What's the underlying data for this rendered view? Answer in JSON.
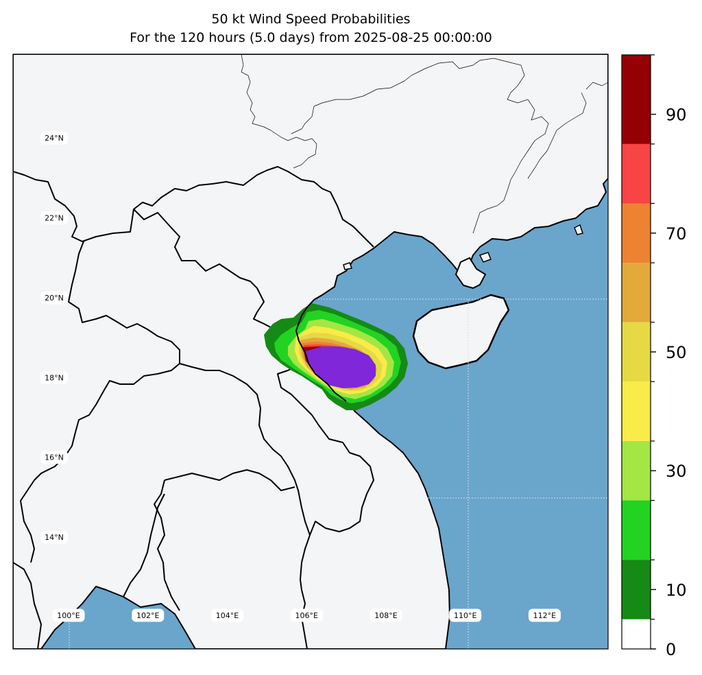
{
  "title_line1": "50 kt Wind Speed Probabilities",
  "title_line2": "For the 120 hours (5.0 days) from 2025-08-25 00:00:00",
  "map": {
    "extent": {
      "lon_min": 98.6,
      "lon_max": 113.6,
      "lat_min": 11.2,
      "lat_max": 26.1
    },
    "lat_labels": [
      "24°N",
      "22°N",
      "20°N",
      "18°N",
      "16°N",
      "14°N"
    ],
    "lat_values": [
      24,
      22,
      20,
      18,
      16,
      14
    ],
    "lon_labels": [
      "100°E",
      "102°E",
      "104°E",
      "106°E",
      "108°E",
      "110°E",
      "112°E"
    ],
    "lon_values": [
      100,
      102,
      104,
      106,
      108,
      110,
      112
    ],
    "colors": {
      "land": "#f4f5f7",
      "ocean": "#6aa5cc",
      "coastline": "#000000",
      "border": "#000000",
      "gridline": "#d8dde3"
    }
  },
  "colorbar": {
    "ticks": [
      "0",
      "10",
      "30",
      "50",
      "70",
      "90"
    ],
    "tick_values": [
      0,
      10,
      30,
      50,
      70,
      90
    ],
    "levels": [
      0,
      5,
      15,
      25,
      35,
      45,
      55,
      65,
      75,
      85,
      100
    ],
    "colors": [
      "#ffffff",
      "#158a15",
      "#22d322",
      "#a4e644",
      "#f9eb48",
      "#e6d944",
      "#e3a93b",
      "#ee8233",
      "#f84444",
      "#950004",
      "#7f27d9"
    ]
  }
}
